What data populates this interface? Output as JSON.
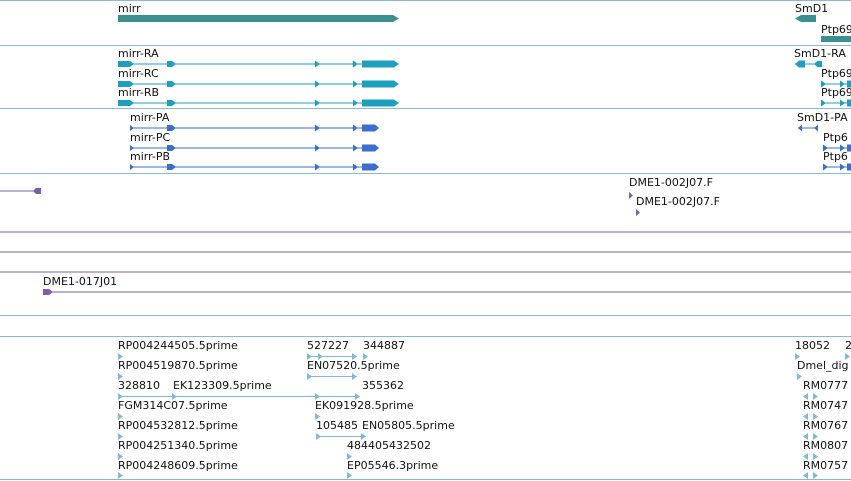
{
  "colors": {
    "gene": "#3b8f8f",
    "transcript_rna": "#1e9fbf",
    "transcript_protein": "#3a6fcb",
    "clone": "#7a5fb0",
    "est": "#82b8d8",
    "divider": "#8fb6cc",
    "text": "#111111"
  },
  "tracks": {
    "genes": {
      "mirr": "mirr",
      "smd1": "SmD1",
      "ptp": "Ptp69"
    },
    "transcripts": {
      "mirr_ra": "mirr-RA",
      "mirr_rc": "mirr-RC",
      "mirr_rb": "mirr-RB",
      "smd1_ra": "SmD1-RA",
      "ptp_1": "Ptp69",
      "ptp_2": "Ptp69"
    },
    "proteins": {
      "mirr_pa": "mirr-PA",
      "mirr_pc": "mirr-PC",
      "mirr_pb": "mirr-PB",
      "smd1_pa": "SmD1-PA",
      "ptp_1": "Ptp6",
      "ptp_2": "Ptp6"
    },
    "clones": {
      "c1": "DME1-002J07.F",
      "c2": "DME1-002J07.F",
      "c3": "DME1-017J01"
    },
    "ests": {
      "e1": "RP004244505.5prime",
      "e2": "527227",
      "e3": "344887",
      "e4": "18052",
      "e5": "2",
      "e6": "RP004519870.5prime",
      "e7": "EN07520.5prime",
      "e8": "Dmel_dig",
      "e9": "328810",
      "e10": "EK123309.5prime",
      "e11": "355362",
      "e12": "RM0777",
      "e13": "FGM314C07.5prime",
      "e14": "EK091928.5prime",
      "e15": "RM0747",
      "e16": "RP004532812.5prime",
      "e17": "105485",
      "e18": "EN05805.5prime",
      "e19": "RM0767",
      "e20": "RP004251340.5prime",
      "e21": "484405432502",
      "e22": "RM0807",
      "e23": "RP004248609.5prime",
      "e24": "EP05546.3prime",
      "e25": "RM0757"
    }
  }
}
